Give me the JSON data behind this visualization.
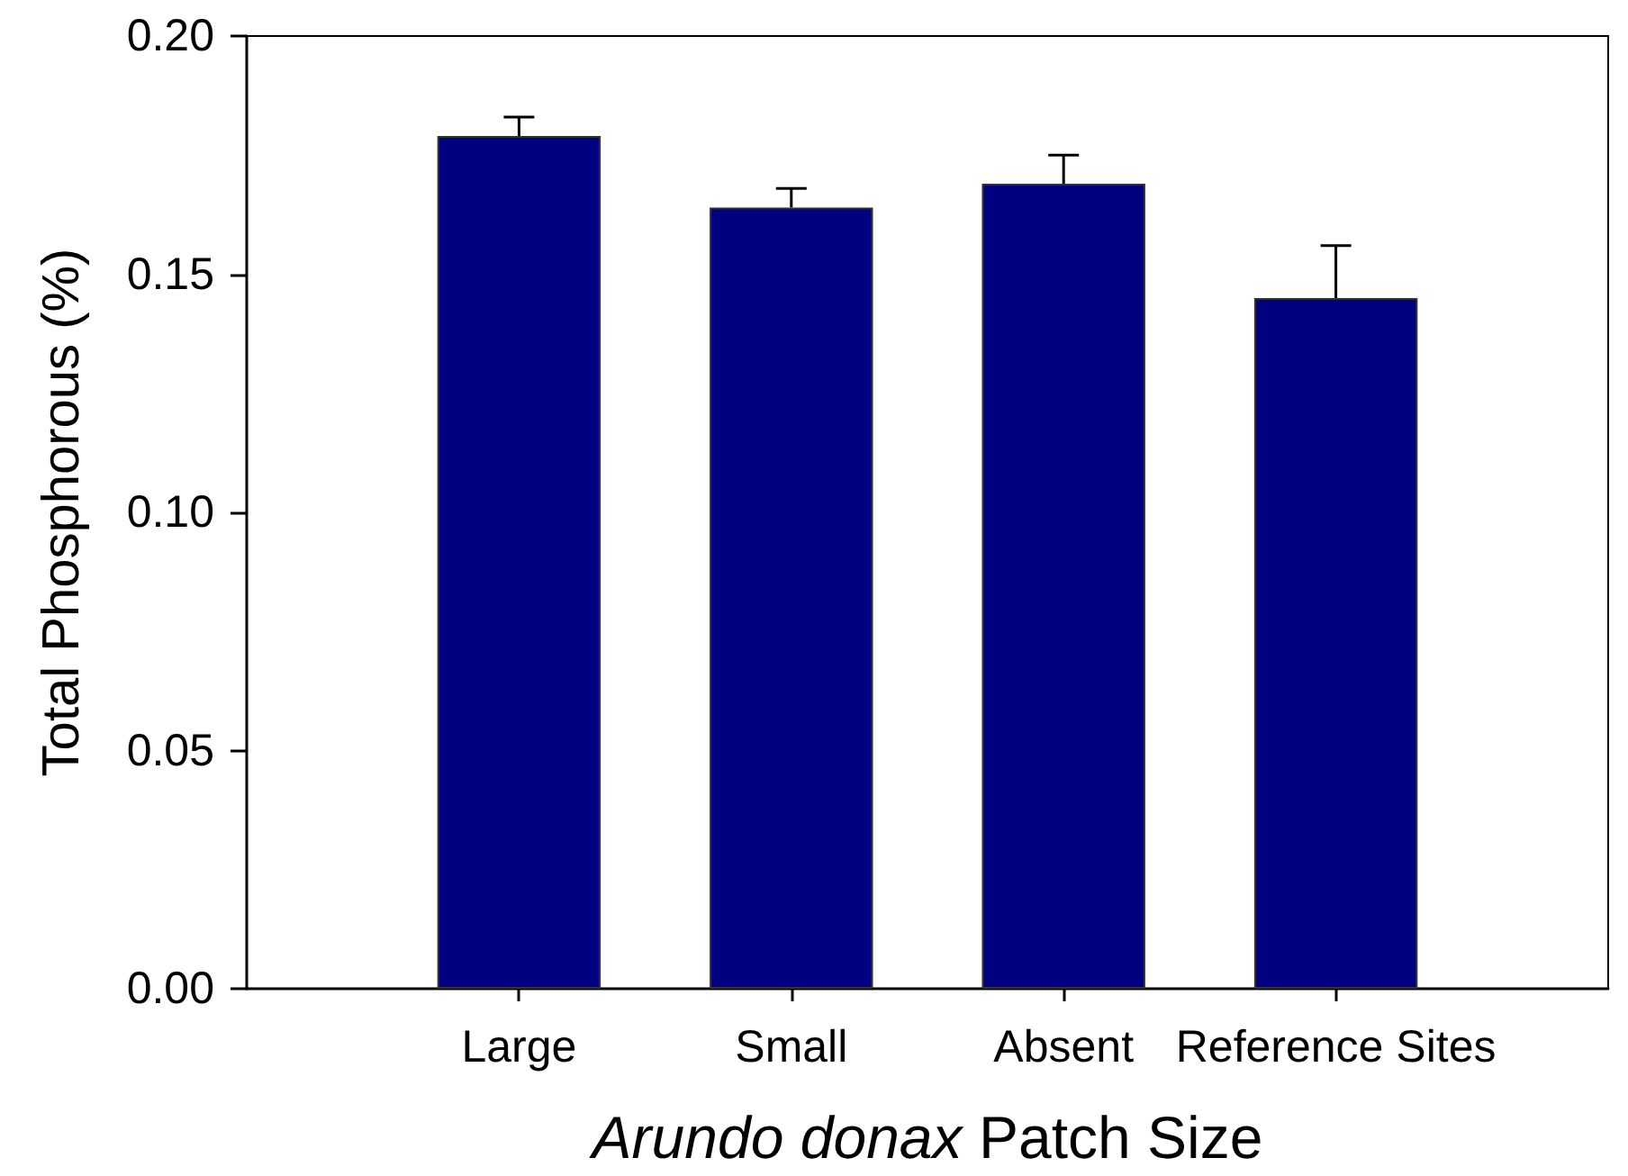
{
  "chart_data": {
    "type": "bar",
    "xlabel": "Arundo donax Patch Size",
    "ylabel": "Total Phosphorous (%)",
    "categories": [
      "Large",
      "Small",
      "Absent",
      "Reference Sites"
    ],
    "values": [
      0.179,
      0.164,
      0.169,
      0.145
    ],
    "color": "#000080",
    "errors": [
      [
        0.179,
        0.183
      ],
      [
        0.164,
        0.168
      ],
      [
        0.169,
        0.175
      ],
      [
        0.145,
        0.156
      ]
    ],
    "ylim": [
      0,
      0.2
    ],
    "yticks": [
      {
        "value": 0,
        "label": "0.00"
      },
      0.05,
      {
        "value": 0.1,
        "label": "0.10"
      },
      0.15,
      {
        "value": 0.2,
        "label": "0.20"
      }
    ]
  }
}
